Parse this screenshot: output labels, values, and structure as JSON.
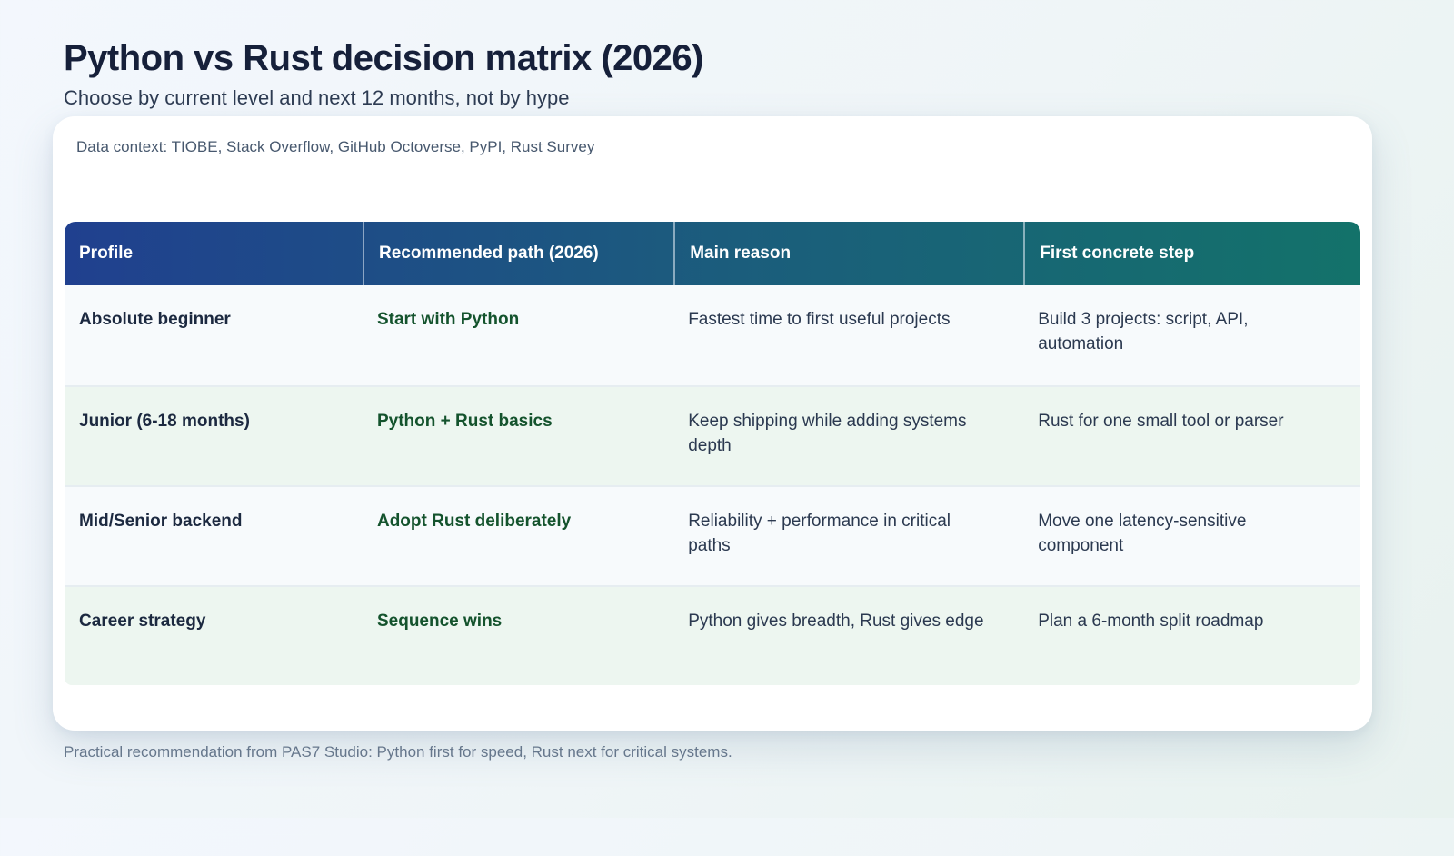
{
  "page": {
    "title": "Python vs Rust decision matrix (2026)",
    "subtitle": "Choose by current level and next 12 months, not by hype",
    "footer": "Practical recommendation from PAS7 Studio: Python first for speed, Rust next for critical systems."
  },
  "card": {
    "context": "Data context: TIOBE, Stack Overflow, GitHub Octoverse, PyPI, Rust Survey"
  },
  "chart_data": {
    "type": "table",
    "title": "Python vs Rust decision matrix (2026)",
    "columns": [
      "Profile",
      "Recommended path (2026)",
      "Main reason",
      "First concrete step"
    ],
    "rows": [
      {
        "profile": "Absolute beginner",
        "path": "Start with Python",
        "reason": "Fastest time to first useful projects",
        "step": "Build 3 projects: script, API, automation"
      },
      {
        "profile": "Junior (6-18 months)",
        "path": "Python + Rust basics",
        "reason": "Keep shipping while adding systems depth",
        "step": "Rust for one small tool or parser"
      },
      {
        "profile": "Mid/Senior backend",
        "path": "Adopt Rust deliberately",
        "reason": "Reliability + performance in critical paths",
        "step": "Move one latency-sensitive component"
      },
      {
        "profile": "Career strategy",
        "path": "Sequence wins",
        "reason": "Python gives breadth, Rust gives edge",
        "step": "Plan a 6-month split roadmap"
      }
    ],
    "layout": {
      "header_gradient": [
        "#20408f",
        "#13726a"
      ],
      "accent_green": "#14532d",
      "row_bg_odd": "#f7fafc",
      "row_bg_even": "#edf6f0"
    }
  }
}
